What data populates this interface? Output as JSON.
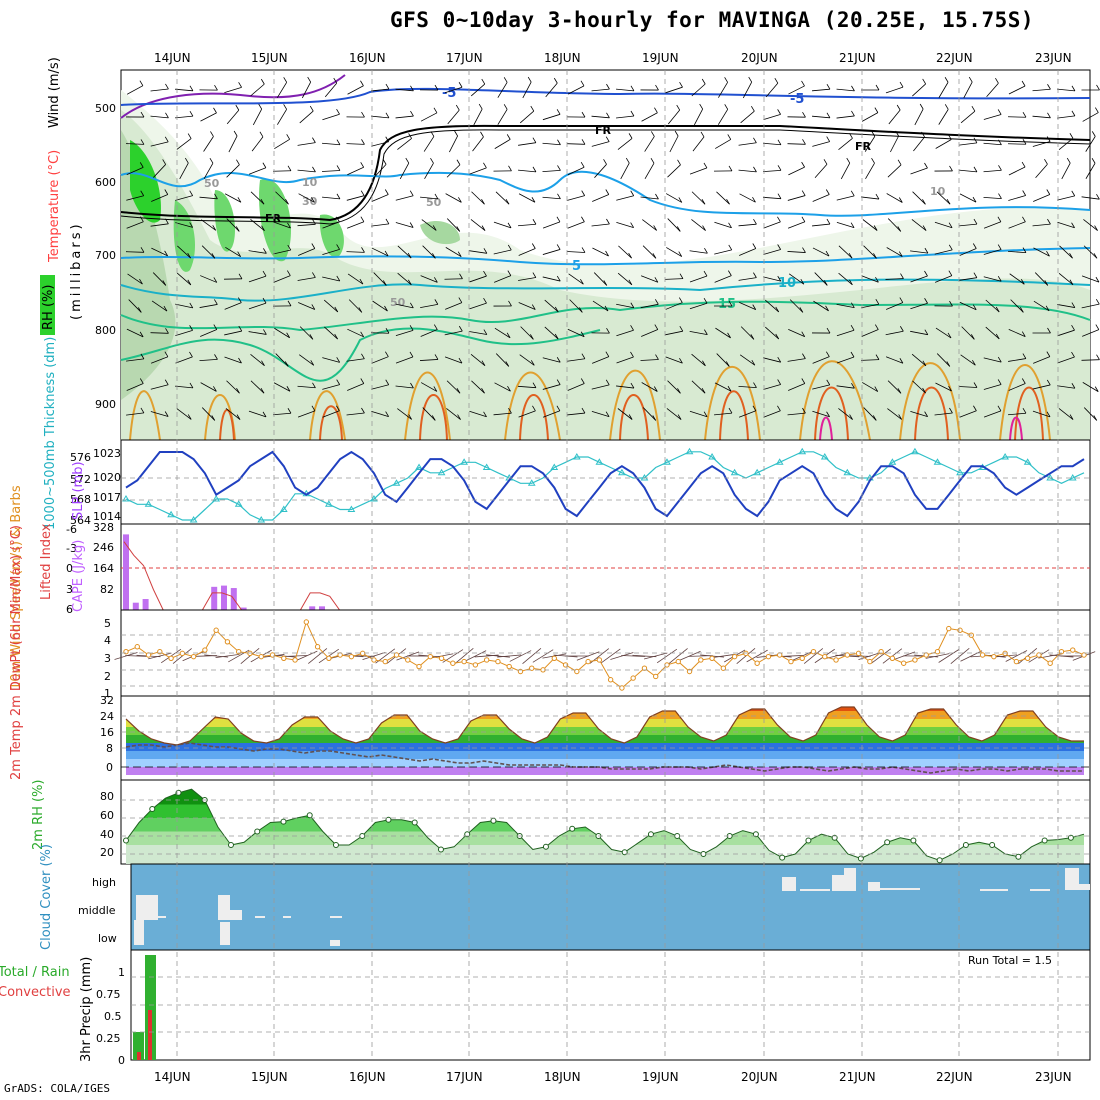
{
  "title": "GFS 0~10day 3-hourly for MAVINGA (20.25E, 15.75S)",
  "credit": "GrADS: COLA/IGES",
  "colors": {
    "wind_text": "#000000",
    "temp_text": "#ff4040",
    "rh_text": "#2aaa2a",
    "thick_text": "#20b0c0",
    "slp_text": "#a040ff",
    "li_text": "#e04040",
    "cape_text": "#c060ff",
    "wind10_text": "#e09020",
    "temp2m_text": "#e04040",
    "cloud_text": "#3090c0",
    "precip_text": "#e04040",
    "cloud_bg": "#6aaed6"
  },
  "dates": [
    "14JUN",
    "15JUN",
    "16JUN",
    "17JUN",
    "18JUN",
    "19JUN",
    "20JUN",
    "21JUN",
    "22JUN",
    "23JUN"
  ],
  "panels": {
    "upper": {
      "label_wind": "Wind (m/s)",
      "label_temp": "Temperature (°C)",
      "label_rh": "RH (%)",
      "label_mb": "(millibars)",
      "pressure_ticks": [
        "500",
        "600",
        "700",
        "800",
        "900"
      ],
      "contour_labels": [
        "-5",
        "-5",
        "FR",
        "FR",
        "FR",
        "5",
        "10",
        "15",
        "10",
        "30",
        "50",
        "50",
        "10",
        "50"
      ]
    },
    "thickness": {
      "label_thick": "1000~500mb Thickness (dm)",
      "label_slp": "SLP (mb)",
      "left_ticks": [
        "576",
        "572",
        "568",
        "564"
      ],
      "right_ticks": [
        "1023",
        "1020",
        "1017",
        "1014"
      ]
    },
    "li_cape": {
      "label_li": "Lifted Index",
      "label_cape": "CAPE (J/kg)",
      "li_ticks": [
        "-6",
        "-3",
        "0",
        "3",
        "6"
      ],
      "cape_ticks": [
        "328",
        "246",
        "164",
        "82"
      ]
    },
    "wind10": {
      "label": "10m Wind Speed (m/s) & Barbs",
      "ticks": [
        "5",
        "4",
        "3",
        "2",
        "1"
      ]
    },
    "temp2m": {
      "label": "2m Temp 2m DewPt (6hr Min/Max) (°C)",
      "ticks": [
        "32",
        "24",
        "16",
        "8",
        "0"
      ]
    },
    "rh2m": {
      "label": "2m RH (%)",
      "ticks": [
        "80",
        "60",
        "40",
        "20"
      ]
    },
    "cloud": {
      "label": "Cloud Cover (%)",
      "levels": [
        "high",
        "middle",
        "low"
      ]
    },
    "precip": {
      "label_total": "Total / Rain",
      "label_conv": "Convective",
      "label_y": "3hr Precip (mm)",
      "ticks": [
        "1",
        "0.75",
        "0.5",
        "0.25",
        "0"
      ],
      "run_total": "Run Total = 1.5"
    }
  },
  "chart_data": [
    {
      "type": "line",
      "name": "1000~500mb Thickness (dm)",
      "values": [
        568,
        567,
        567,
        566,
        565,
        564,
        564,
        566,
        568,
        568,
        567,
        565,
        564,
        564,
        566,
        569,
        569,
        568,
        567,
        566,
        566,
        567,
        568,
        570,
        571,
        572,
        574,
        573,
        573,
        574,
        575,
        575,
        574,
        573,
        572,
        571,
        571,
        572,
        574,
        575,
        576,
        576,
        575,
        574,
        573,
        572,
        572,
        574,
        575,
        576,
        577,
        577,
        576,
        574,
        573,
        572,
        573,
        574,
        575,
        576,
        577,
        577,
        576,
        574,
        573,
        572,
        572,
        573,
        575,
        576,
        577,
        576,
        575,
        574,
        573,
        573,
        574,
        575,
        576,
        576,
        575,
        573,
        572,
        571,
        572,
        573
      ]
    },
    {
      "type": "line",
      "name": "SLP (mb)",
      "values": [
        1018,
        1019,
        1021,
        1023,
        1023,
        1023,
        1022,
        1020,
        1017,
        1018,
        1019,
        1021,
        1022,
        1023,
        1021,
        1018,
        1017,
        1018,
        1020,
        1022,
        1023,
        1022,
        1020,
        1017,
        1016,
        1018,
        1020,
        1022,
        1022,
        1021,
        1019,
        1016,
        1015,
        1017,
        1019,
        1021,
        1021,
        1020,
        1018,
        1015,
        1014,
        1016,
        1018,
        1020,
        1021,
        1020,
        1018,
        1015,
        1014,
        1016,
        1018,
        1020,
        1021,
        1020,
        1017,
        1015,
        1014,
        1016,
        1019,
        1020,
        1021,
        1020,
        1017,
        1015,
        1014,
        1016,
        1019,
        1021,
        1021,
        1020,
        1017,
        1015,
        1015,
        1017,
        1019,
        1021,
        1021,
        1020,
        1018,
        1017,
        1018,
        1019,
        1020,
        1021,
        1021,
        1022
      ]
    },
    {
      "type": "bar",
      "name": "CAPE (J/kg)",
      "values": [
        310,
        30,
        45,
        0,
        0,
        0,
        0,
        0,
        0,
        95,
        100,
        90,
        10,
        0,
        0,
        0,
        0,
        0,
        0,
        15,
        15,
        0,
        0,
        0
      ]
    },
    {
      "type": "line",
      "name": "Lifted Index",
      "values": [
        -4,
        -2,
        -0.5,
        3,
        6,
        6,
        6,
        6,
        6,
        3.5,
        3.5,
        4,
        6,
        6,
        6,
        6,
        6,
        6,
        6,
        3.5,
        3.5,
        4,
        6,
        6
      ]
    },
    {
      "type": "line",
      "name": "10m Wind Speed (m/s)",
      "values": [
        3.2,
        3.5,
        3.0,
        3.2,
        2.8,
        3.1,
        2.9,
        3.3,
        4.5,
        3.8,
        3.2,
        3.1,
        2.9,
        3.0,
        2.8,
        2.7,
        5.0,
        3.5,
        2.8,
        3.0,
        2.9,
        3.1,
        2.7,
        2.6,
        3.0,
        2.7,
        2.3,
        2.9,
        2.8,
        2.5,
        2.6,
        2.4,
        2.7,
        2.6,
        2.3,
        2.0,
        2.2,
        2.1,
        2.8,
        2.4,
        2.0,
        2.6,
        2.7,
        1.5,
        1.0,
        1.6,
        2.2,
        1.7,
        2.4,
        2.6,
        2.0,
        2.7,
        2.8,
        2.2,
        2.9,
        3.1,
        2.5,
        2.9,
        3.0,
        2.6,
        2.8,
        3.2,
        2.9,
        2.7,
        3.0,
        3.1,
        2.6,
        3.2,
        2.8,
        2.5,
        2.7,
        3.0,
        3.2,
        4.6,
        4.5,
        4.2,
        3.0,
        2.9,
        3.1,
        2.6,
        2.8,
        3.0,
        2.5,
        3.2,
        3.3,
        3.0
      ]
    },
    {
      "type": "area",
      "name": "2m Temp (°C)",
      "values": [
        24,
        18,
        14,
        12,
        11,
        13,
        19,
        25,
        24,
        17,
        13,
        12,
        14,
        21,
        25,
        25,
        18,
        14,
        12,
        14,
        22,
        26,
        26,
        18,
        14,
        12,
        14,
        23,
        26,
        26,
        19,
        14,
        12,
        15,
        24,
        27,
        27,
        19,
        14,
        12,
        15,
        25,
        28,
        28,
        20,
        15,
        13,
        16,
        26,
        29,
        29,
        21,
        15,
        13,
        16,
        27,
        30,
        30,
        21,
        15,
        13,
        16,
        27,
        29,
        29,
        21,
        15,
        13,
        16,
        26,
        28,
        28,
        20,
        15,
        13,
        13
      ]
    },
    {
      "type": "line",
      "name": "2m DewPt (°C)",
      "values": [
        10,
        11,
        11,
        10,
        11,
        12,
        11,
        10,
        10,
        9,
        8,
        9,
        9,
        8,
        7,
        8,
        8,
        7,
        6,
        5,
        6,
        5,
        4,
        3,
        4,
        3,
        2,
        2,
        3,
        2,
        1,
        1,
        1,
        1,
        1,
        0,
        0,
        0,
        -1,
        -1,
        -1,
        -1,
        0,
        0,
        0,
        -1,
        0,
        1,
        0,
        -1,
        -2,
        -1,
        0,
        0,
        -1,
        -2,
        -1,
        0,
        -1,
        -1,
        0,
        -1,
        -2,
        -3,
        -2,
        -1,
        -2,
        -1,
        -1,
        -2,
        -1,
        -1,
        -1,
        -2,
        -2,
        -2
      ]
    },
    {
      "type": "area",
      "name": "2m RH (%)",
      "values": [
        35,
        55,
        70,
        82,
        88,
        92,
        80,
        50,
        30,
        33,
        45,
        55,
        56,
        60,
        63,
        45,
        30,
        30,
        40,
        55,
        58,
        58,
        55,
        38,
        25,
        28,
        42,
        55,
        57,
        55,
        40,
        25,
        28,
        40,
        48,
        50,
        40,
        25,
        22,
        32,
        42,
        46,
        40,
        25,
        20,
        28,
        40,
        46,
        42,
        24,
        16,
        20,
        35,
        42,
        38,
        20,
        15,
        22,
        33,
        38,
        35,
        18,
        13,
        20,
        30,
        33,
        30,
        20,
        17,
        28,
        35,
        36,
        38,
        42
      ]
    },
    {
      "type": "bar",
      "name": "3hr Precip (mm)",
      "values": [
        0.35,
        1.2
      ],
      "series": [
        {
          "name": "Total / Rain",
          "values": [
            0.35,
            1.2
          ]
        },
        {
          "name": "Convective",
          "values": [
            0.1,
            0.6
          ]
        }
      ]
    }
  ]
}
